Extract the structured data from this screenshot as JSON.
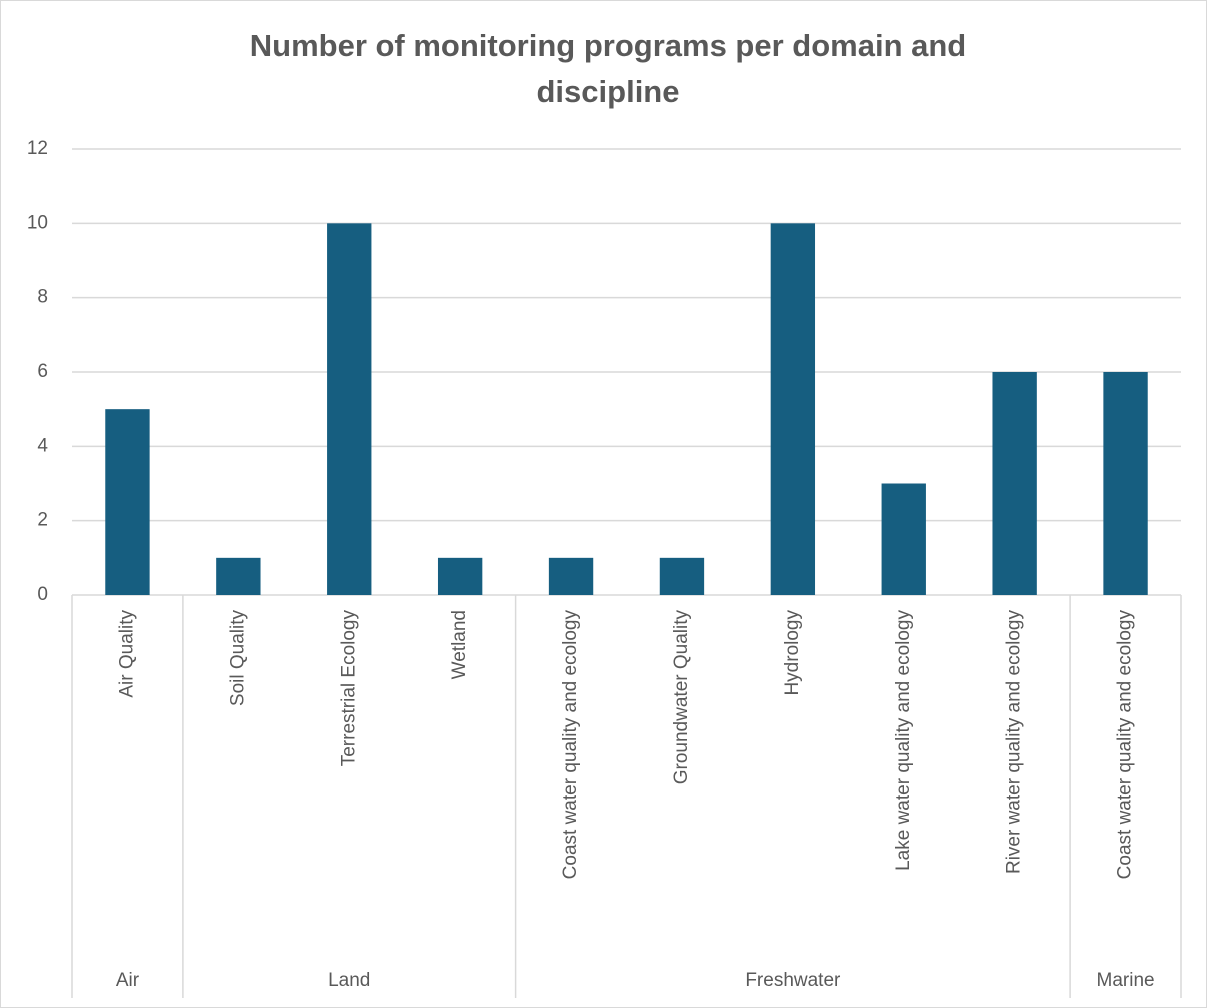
{
  "chart_data": {
    "type": "bar",
    "title": [
      "Number of monitoring programs per domain and",
      "discipline"
    ],
    "categories": [
      "Air Quality",
      "Soil Quality",
      "Terrestrial Ecology",
      "Wetland",
      "Coast water quality and ecology",
      "Groundwater Quality",
      "Hydrology",
      "Lake water quality and ecology",
      "River water quality and ecology",
      "Coast water quality and ecology"
    ],
    "groups": [
      {
        "name": "Air",
        "span": 1
      },
      {
        "name": "Land",
        "span": 3
      },
      {
        "name": "Freshwater",
        "span": 5
      },
      {
        "name": "Marine",
        "span": 1
      }
    ],
    "values": [
      5,
      1,
      10,
      1,
      1,
      1,
      10,
      3,
      6,
      6
    ],
    "color": "#165e80",
    "ylim": [
      0,
      12
    ],
    "yticks": [
      0,
      2,
      4,
      6,
      8,
      10,
      12
    ],
    "grid": true
  }
}
